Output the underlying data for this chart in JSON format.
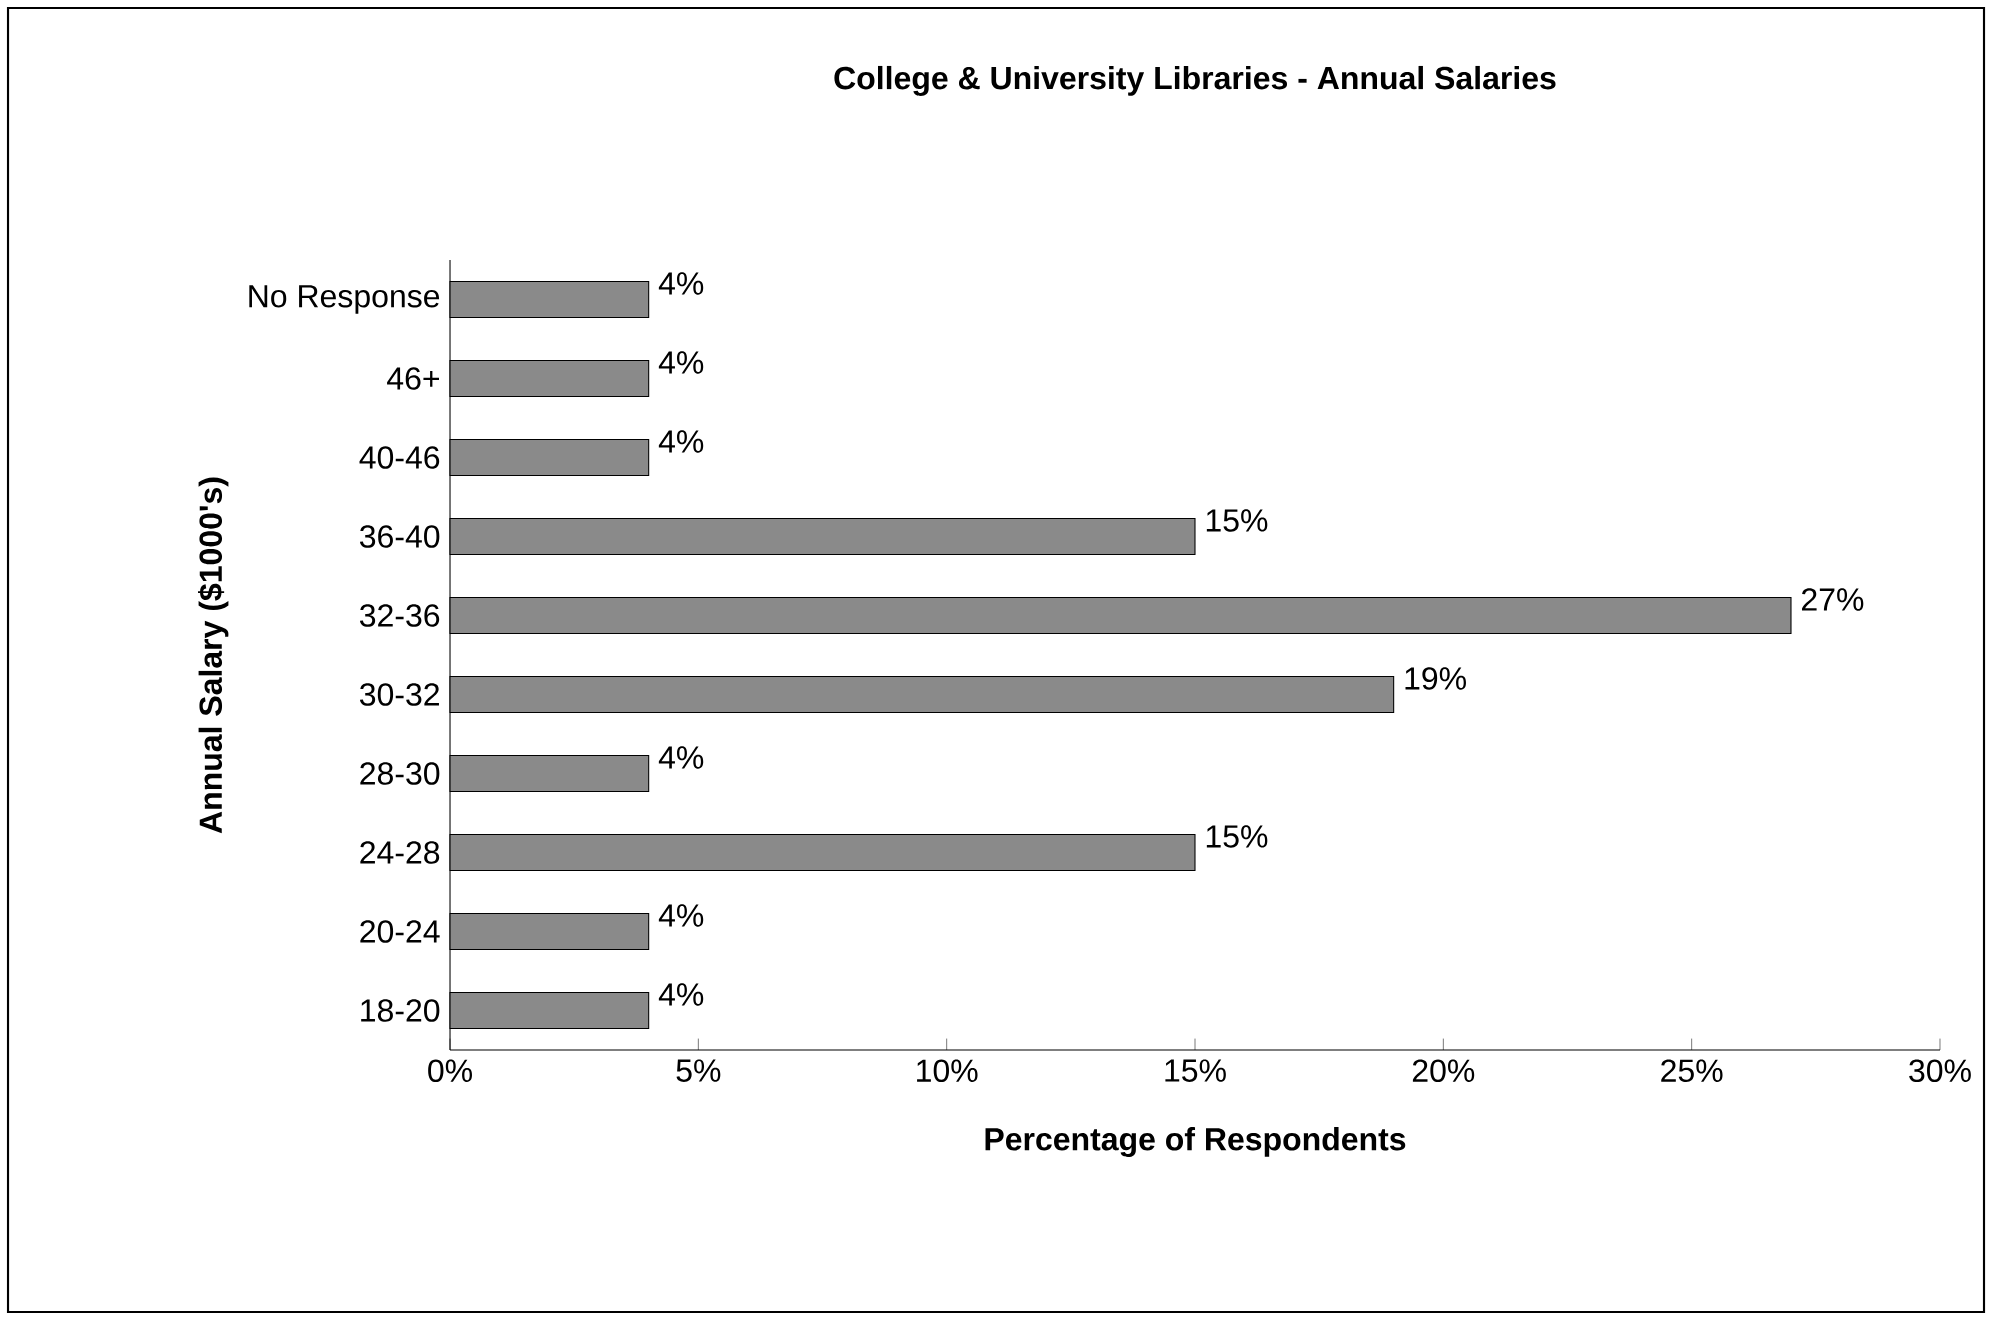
{
  "chart_data": {
    "type": "bar",
    "orientation": "horizontal",
    "title": "College & University Libraries - Annual Salaries",
    "xlabel": "Percentage of Respondents",
    "ylabel": "Annual Salary ($1000's)",
    "categories": [
      "No Response",
      "46+",
      "40-46",
      "36-40",
      "32-36",
      "30-32",
      "28-30",
      "24-28",
      "20-24",
      "18-20"
    ],
    "values": [
      4,
      4,
      4,
      15,
      27,
      19,
      4,
      15,
      4,
      4
    ],
    "value_labels": [
      "4%",
      "4%",
      "4%",
      "15%",
      "27%",
      "19%",
      "4%",
      "15%",
      "4%",
      "4%"
    ],
    "color": "#8a8a8a",
    "xlim": [
      0,
      30
    ],
    "xticks": [
      {
        "value": 0,
        "label": "0%"
      },
      {
        "value": 5,
        "label": "5%"
      },
      {
        "value": 10,
        "label": "10%"
      },
      {
        "value": 15,
        "label": "15%"
      },
      {
        "value": 20,
        "label": "20%"
      },
      {
        "value": 25,
        "label": "25%"
      },
      {
        "value": 30,
        "label": "30%"
      }
    ],
    "data_labels": false
  }
}
